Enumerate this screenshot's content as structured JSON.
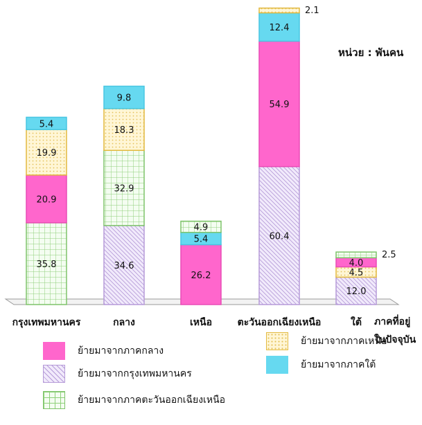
{
  "chart_data": {
    "type": "bar",
    "stacked": true,
    "unit_label": "หน่วย : พันคน",
    "xlabel": "ภาคที่อยู่ ในปัจจุบัน",
    "categories": [
      "กรุงเทพมหานคร",
      "กลาง",
      "เหนือ",
      "ตะวันออกเฉียงเหนือ",
      "ใต้"
    ],
    "series": [
      {
        "name": "ย้ายมาจากกรุงเทพมหานคร",
        "values": [
          0,
          34.6,
          0,
          60.4,
          12.0
        ],
        "labels": [
          "",
          "34.6",
          "",
          "60.4",
          "12.0"
        ],
        "color": "#e6ddf4",
        "pattern": "dots-purple"
      },
      {
        "name": "ย้ายมาจากภาคกลาง",
        "values": [
          20.9,
          0,
          26.2,
          54.9,
          4.0
        ],
        "labels": [
          "20.9",
          "",
          "26.2",
          "54.9",
          "4.0"
        ],
        "color": "#ff66cc",
        "pattern": "solid"
      },
      {
        "name": "ย้ายมาจากภาคตะวันออกเฉียงเหนือ",
        "values": [
          35.8,
          32.9,
          4.9,
          0,
          2.5
        ],
        "labels": [
          "35.8",
          "32.9",
          "4.9",
          "",
          "2.5"
        ],
        "color": "#eafbe6",
        "pattern": "grid-green"
      },
      {
        "name": "ย้ายมาจากภาคเหนือ",
        "values": [
          19.9,
          18.3,
          0,
          2.1,
          4.5
        ],
        "labels": [
          "19.9",
          "18.3",
          "",
          "2.1",
          "4.5"
        ],
        "color": "#fff3c4",
        "pattern": "dots-yellow"
      },
      {
        "name": "ย้ายมาจากภาคใต้",
        "values": [
          5.4,
          9.8,
          5.4,
          12.4,
          0
        ],
        "labels": [
          "5.4",
          "9.8",
          "5.4",
          "12.4",
          ""
        ],
        "color": "#66d9f0",
        "pattern": "solid"
      }
    ],
    "stack_order": [
      [
        "ย้ายมาจากภาคตะวันออกเฉียงเหนือ",
        "ย้ายมาจากภาคกลาง",
        "ย้ายมาจากภาคเหนือ",
        "ย้ายมาจากภาคใต้"
      ],
      [
        "ย้ายมาจากกรุงเทพมหานคร",
        "ย้ายมาจากภาคตะวันออกเฉียงเหนือ",
        "ย้ายมาจากภาคเหนือ",
        "ย้ายมาจากภาคใต้"
      ],
      [
        "ย้ายมาจากภาคกลาง",
        "ย้ายมาจากกรุงเทพมหานคร",
        "ย้ายมาจากภาคใต้",
        "ย้ายมาจากภาคตะวันออกเฉียงเหนือ"
      ],
      [
        "ย้ายมาจากกรุงเทพมหานคร",
        "ย้ายมาจากภาคกลาง",
        "ย้ายมาจากภาคใต้",
        "ย้ายมาจากภาคเหนือ"
      ],
      [
        "ย้ายมาจากกรุงเทพมหานคร",
        "ย้ายมาจากภาคเหนือ",
        "ย้ายมาจากภาคกลาง",
        "ย้ายมาจากภาคตะวันออกเฉียงเหนือ"
      ]
    ],
    "ylim": [
      0,
      135
    ],
    "grid": false,
    "legend_position": "bottom"
  },
  "legend": {
    "items": [
      {
        "label": "ย้ายมาจากภาคกลาง",
        "series": "ย้ายมาจากภาคกลาง"
      },
      {
        "label": "ย้ายมาจากภาคเหนือ",
        "series": "ย้ายมาจากภาคเหนือ"
      },
      {
        "label": "ย้ายมาจากกรุงเทพมหานคร",
        "series": "ย้ายมาจากกรุงเทพมหานคร"
      },
      {
        "label": "ย้ายมาจากภาคใต้",
        "series": "ย้ายมาจากภาคใต้"
      },
      {
        "label": "ย้ายมาจากภาคตะวันออกเฉียงเหนือ",
        "series": "ย้ายมาจากภาคตะวันออกเฉียงเหนือ"
      }
    ]
  }
}
